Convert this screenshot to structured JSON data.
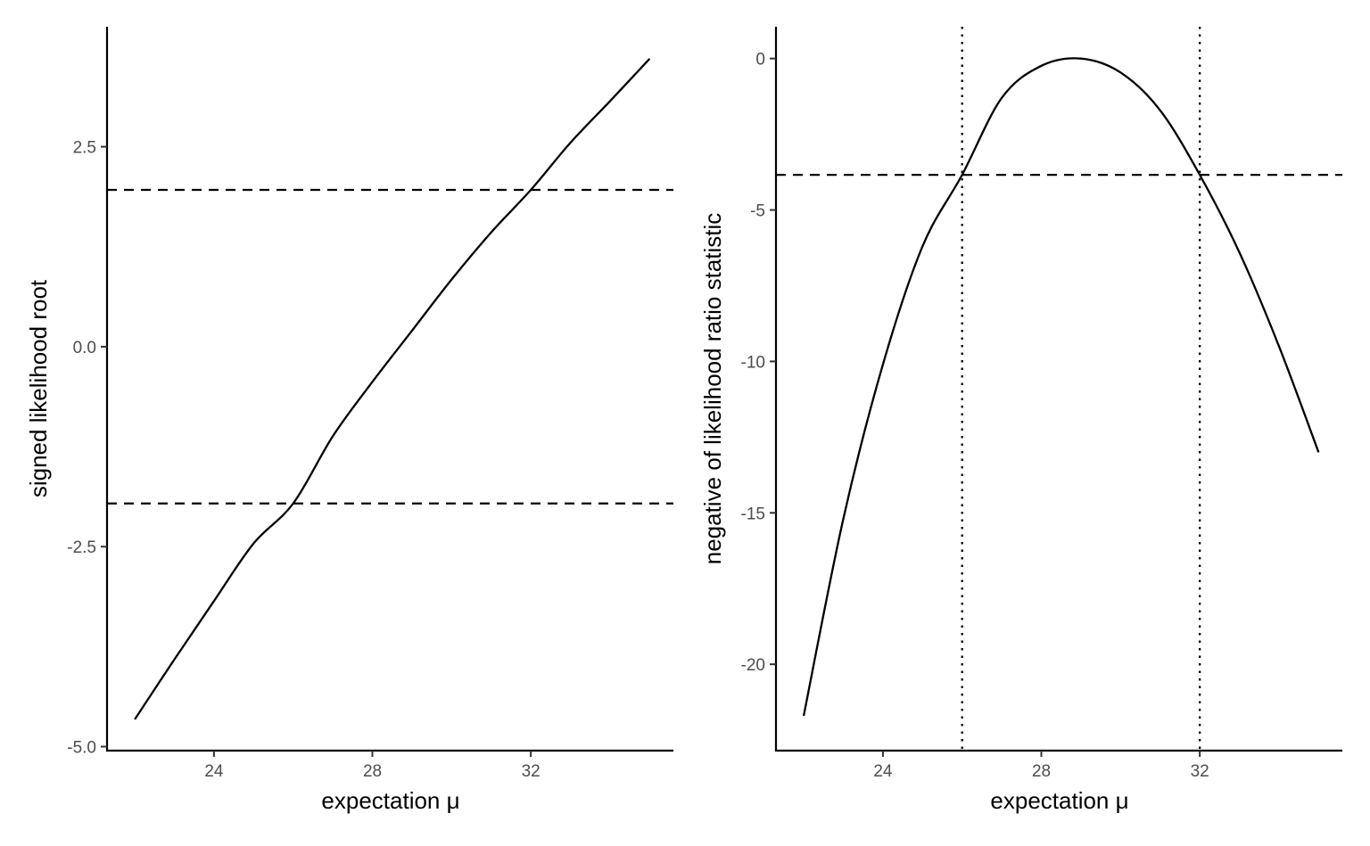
{
  "chart_data": [
    {
      "type": "line",
      "xlabel": "expectation μ",
      "ylabel": "signed likelihood root",
      "xlim": [
        21.3,
        35.6
      ],
      "ylim": [
        -5.05,
        4.0
      ],
      "xticks": [
        24,
        28,
        32
      ],
      "xtick_labels": [
        "24",
        "28",
        "32"
      ],
      "yticks": [
        -5.0,
        -2.5,
        0.0,
        2.5
      ],
      "ytick_labels": [
        "-5.0",
        "-2.5",
        "0.0",
        "2.5"
      ],
      "grid": false,
      "series": [
        {
          "x": [
            22.0,
            23.0,
            24.0,
            25.0,
            26.0,
            27.0,
            28.0,
            29.0,
            30.0,
            31.0,
            32.0,
            33.0,
            34.0,
            35.0
          ],
          "y": [
            -4.66,
            -3.91,
            -3.18,
            -2.46,
            -1.96,
            -1.12,
            -0.44,
            0.2,
            0.84,
            1.43,
            1.96,
            2.55,
            3.07,
            3.6
          ]
        }
      ],
      "hlines": [
        1.96,
        -1.96
      ],
      "vlines": []
    },
    {
      "type": "line",
      "xlabel": "expectation μ",
      "ylabel": "negative of likelihood ratio statistic",
      "xlim": [
        21.3,
        35.6
      ],
      "ylim": [
        -22.85,
        1.05
      ],
      "xticks": [
        24,
        28,
        32
      ],
      "xtick_labels": [
        "24",
        "28",
        "32"
      ],
      "yticks": [
        -20,
        -15,
        -10,
        -5,
        0
      ],
      "ytick_labels": [
        "-20",
        "-15",
        "-10",
        "-5",
        "0"
      ],
      "grid": false,
      "series": [
        {
          "x": [
            22.0,
            23.0,
            24.0,
            25.0,
            26.0,
            27.0,
            28.0,
            29.0,
            30.0,
            31.0,
            32.0,
            33.0,
            34.0,
            35.0
          ],
          "y": [
            -21.7,
            -15.2,
            -10.1,
            -6.2,
            -3.84,
            -1.3,
            -0.24,
            0.0,
            -0.46,
            -1.71,
            -3.84,
            -6.4,
            -9.5,
            -13.0
          ]
        }
      ],
      "hlines": [
        -3.84
      ],
      "vlines": [
        26.0,
        32.0
      ]
    }
  ]
}
